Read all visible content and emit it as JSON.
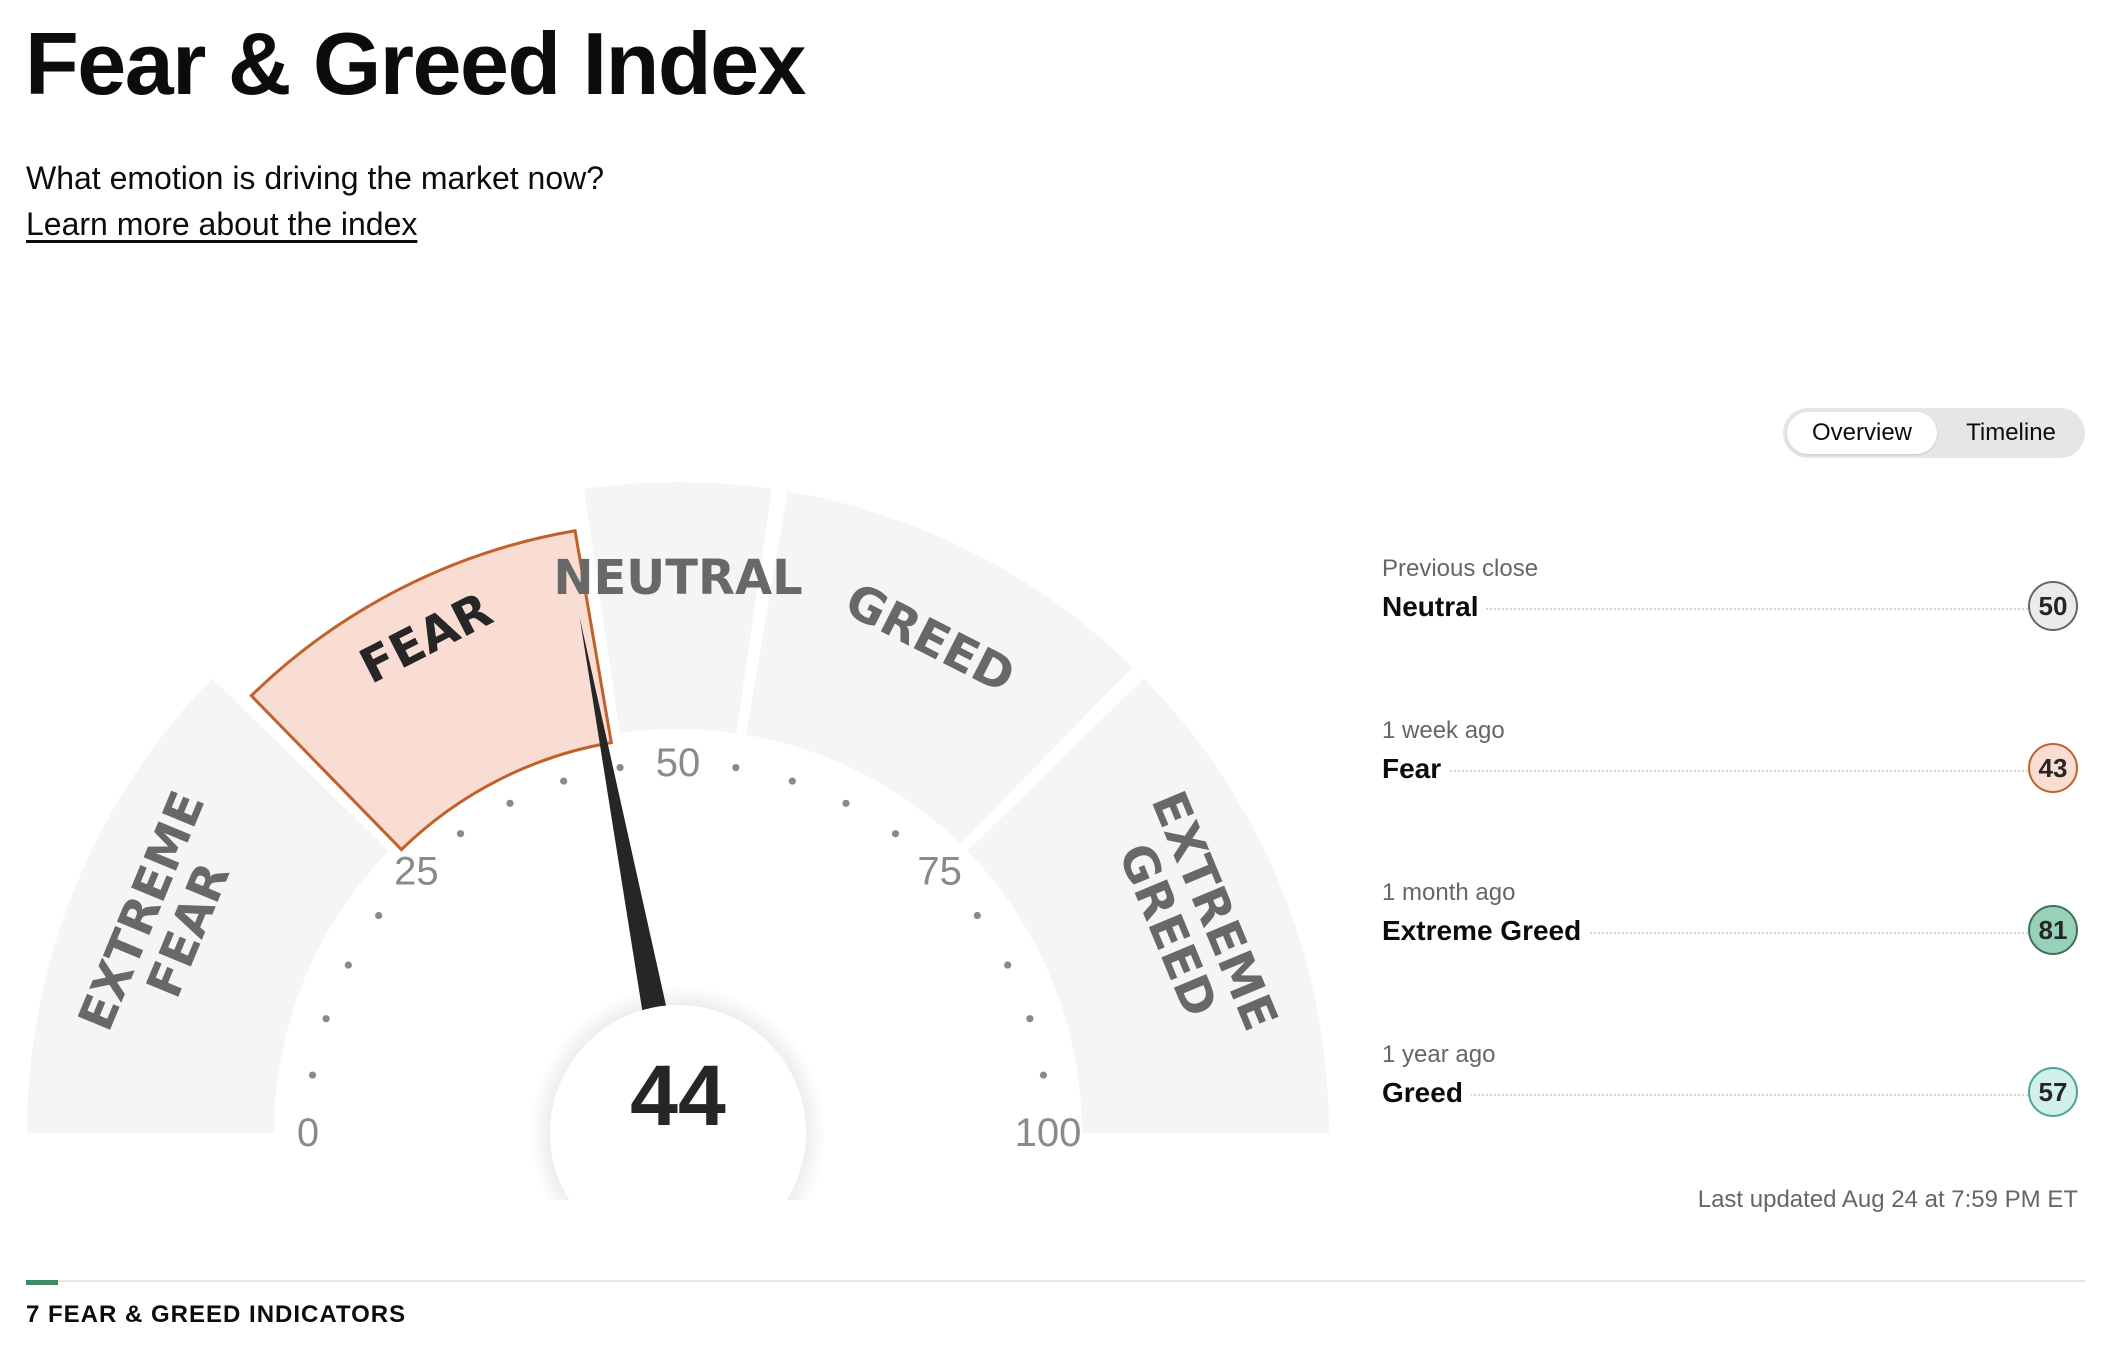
{
  "header": {
    "title": "Fear & Greed Index",
    "subtitle": "What emotion is driving the market now?",
    "learn_more": "Learn more about the index"
  },
  "view_toggle": {
    "options": [
      "Overview",
      "Timeline"
    ],
    "selected": "Overview"
  },
  "gauge": {
    "score": 44,
    "current_rating": "Fear",
    "segments": [
      {
        "id": "extreme-fear",
        "lines": [
          "EXTREME",
          "FEAR"
        ],
        "from": 0,
        "to": 25
      },
      {
        "id": "fear",
        "lines": [
          "FEAR"
        ],
        "from": 25,
        "to": 45
      },
      {
        "id": "neutral",
        "lines": [
          "NEUTRAL"
        ],
        "from": 45,
        "to": 55
      },
      {
        "id": "greed",
        "lines": [
          "GREED"
        ],
        "from": 55,
        "to": 75
      },
      {
        "id": "extreme-greed",
        "lines": [
          "EXTREME",
          "GREED"
        ],
        "from": 75,
        "to": 100
      }
    ],
    "active_segment": "fear",
    "tick_labels": [
      "0",
      "25",
      "50",
      "75",
      "100"
    ],
    "colors": {
      "segment": "#f5f5f5",
      "active_fill": "#f9dcd2",
      "active_stroke": "#c0612b",
      "needle": "#262626",
      "tick_dot": "#8a8a8a"
    }
  },
  "history": [
    {
      "label": "Previous close",
      "rating": "Neutral",
      "value": "50",
      "bg": "#ebebeb",
      "border": "#666666"
    },
    {
      "label": "1 week ago",
      "rating": "Fear",
      "value": "43",
      "bg": "#f9dcd2",
      "border": "#c0612b"
    },
    {
      "label": "1 month ago",
      "rating": "Extreme Greed",
      "value": "81",
      "bg": "#97d1b9",
      "border": "#3e6f59"
    },
    {
      "label": "1 year ago",
      "rating": "Greed",
      "value": "57",
      "bg": "#d1f0ec",
      "border": "#4aa596"
    }
  ],
  "last_updated": "Last updated Aug 24 at 7:59 PM ET",
  "indicators": {
    "heading": "7 FEAR & GREED INDICATORS",
    "accent_color": "#3e8a64"
  }
}
